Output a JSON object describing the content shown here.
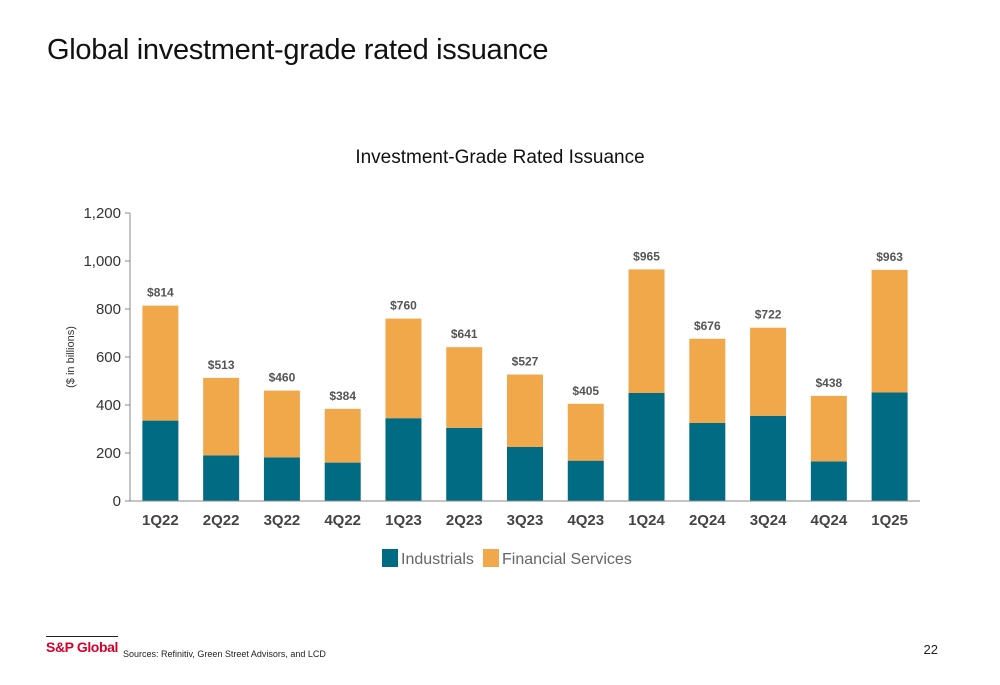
{
  "slide": {
    "title": "Global investment-grade rated issuance",
    "source": "Sources: Refinitiv, Green Street Advisors, and LCD",
    "page_number": "22",
    "logo_text": "S&P Global"
  },
  "colors": {
    "industrials": "#006b82",
    "financial": "#f0a84b",
    "logo": "#d6002a"
  },
  "chart_data": {
    "type": "bar",
    "stacked": true,
    "title": "Investment-Grade Rated Issuance",
    "ylabel": "($ in billions)",
    "xlabel": "",
    "ylim": [
      0,
      1200
    ],
    "yticks": [
      0,
      200,
      400,
      600,
      800,
      1000,
      1200
    ],
    "ytick_labels": [
      "0",
      "200",
      "400",
      "600",
      "800",
      "1,000",
      "1,200"
    ],
    "grid": false,
    "legend_position": "bottom",
    "categories": [
      "1Q22",
      "2Q22",
      "3Q22",
      "4Q22",
      "1Q23",
      "2Q23",
      "3Q23",
      "4Q23",
      "1Q24",
      "2Q24",
      "3Q24",
      "4Q24",
      "1Q25"
    ],
    "series": [
      {
        "name": "Industrials",
        "values": [
          335,
          190,
          182,
          160,
          345,
          305,
          225,
          168,
          450,
          325,
          355,
          165,
          452
        ]
      },
      {
        "name": "Financial Services",
        "values": [
          479,
          323,
          278,
          224,
          415,
          336,
          302,
          237,
          515,
          351,
          367,
          273,
          511
        ]
      }
    ],
    "totals": [
      814,
      513,
      460,
      384,
      760,
      641,
      527,
      405,
      965,
      676,
      722,
      438,
      963
    ],
    "total_labels": [
      "$814",
      "$513",
      "$460",
      "$384",
      "$760",
      "$641",
      "$527",
      "$405",
      "$965",
      "$676",
      "$722",
      "$438",
      "$963"
    ]
  }
}
